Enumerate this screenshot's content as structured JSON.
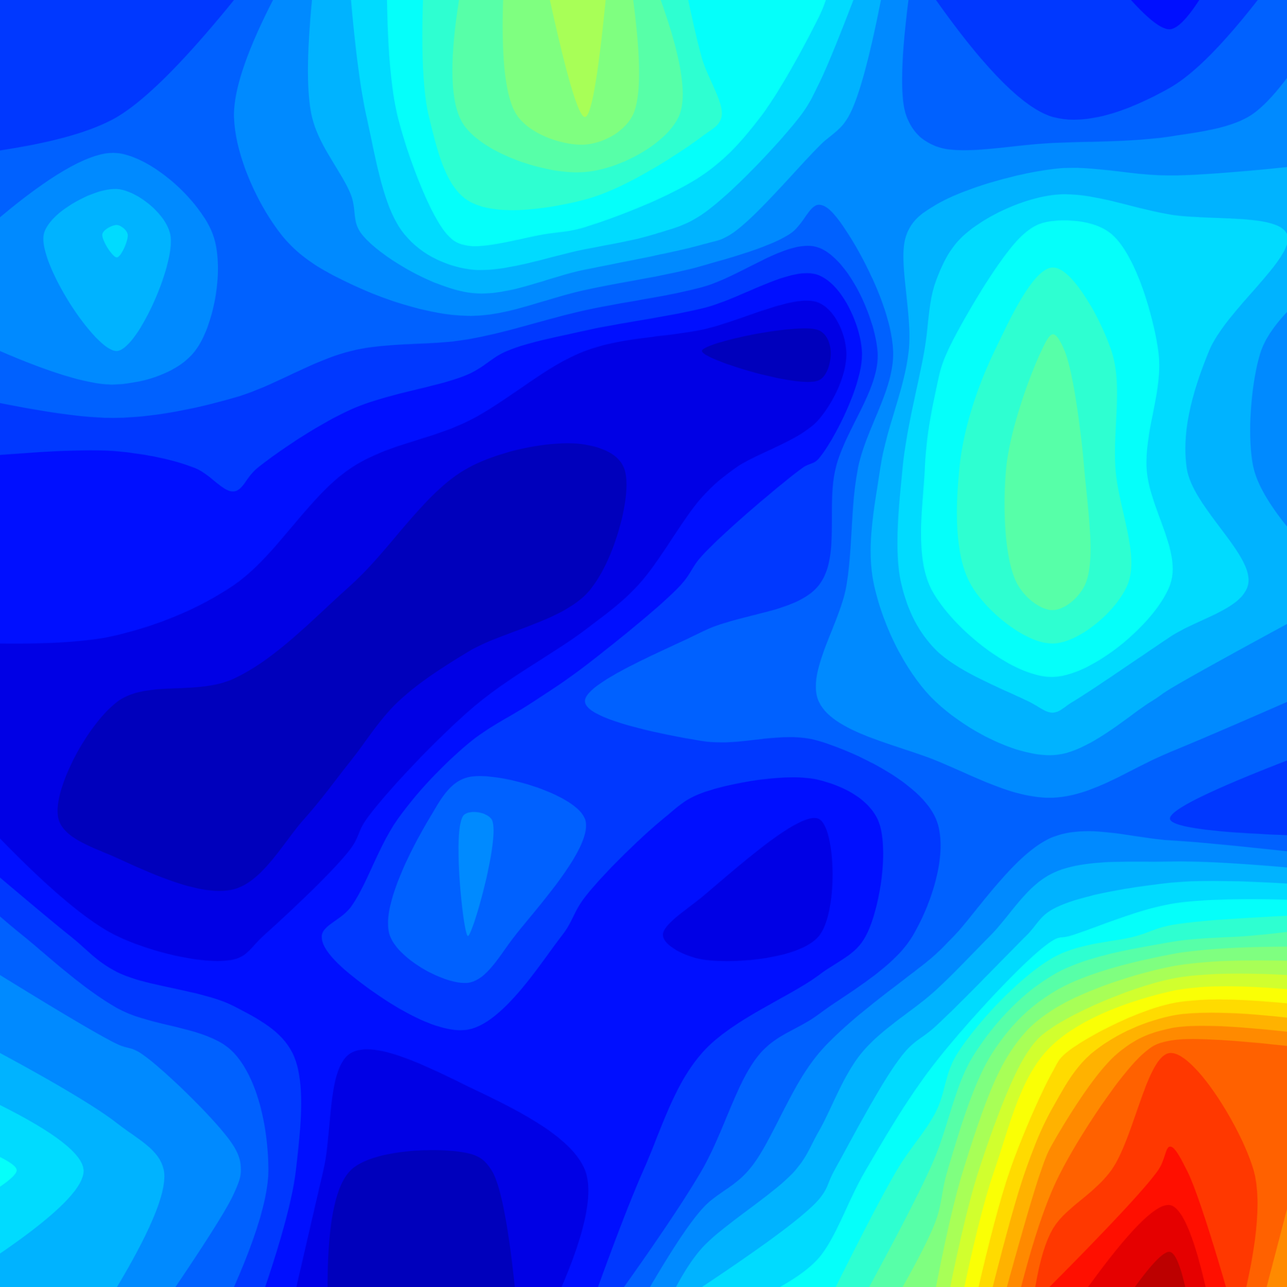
{
  "chart_data": {
    "type": "contour",
    "tick_labels": false,
    "grid": false,
    "zlim": [
      0,
      1
    ],
    "z": [
      [
        0.18,
        0.17,
        0.2,
        0.32,
        0.45,
        0.55,
        0.38,
        0.37,
        0.2,
        0.2,
        0.14,
        0.22
      ],
      [
        0.18,
        0.2,
        0.24,
        0.3,
        0.45,
        0.52,
        0.42,
        0.3,
        0.22,
        0.2,
        0.22,
        0.25
      ],
      [
        0.25,
        0.33,
        0.22,
        0.27,
        0.38,
        0.35,
        0.3,
        0.22,
        0.3,
        0.38,
        0.34,
        0.32
      ],
      [
        0.24,
        0.28,
        0.22,
        0.2,
        0.18,
        0.12,
        0.08,
        0.05,
        0.35,
        0.45,
        0.35,
        0.26
      ],
      [
        0.15,
        0.14,
        0.17,
        0.12,
        0.08,
        0.07,
        0.1,
        0.17,
        0.38,
        0.48,
        0.33,
        0.26
      ],
      [
        0.14,
        0.15,
        0.12,
        0.08,
        0.04,
        0.07,
        0.18,
        0.2,
        0.37,
        0.47,
        0.36,
        0.3
      ],
      [
        0.1,
        0.08,
        0.07,
        0.06,
        0.11,
        0.2,
        0.23,
        0.24,
        0.28,
        0.33,
        0.27,
        0.24
      ],
      [
        0.1,
        0.06,
        0.05,
        0.1,
        0.25,
        0.2,
        0.14,
        0.12,
        0.2,
        0.22,
        0.2,
        0.16
      ],
      [
        0.22,
        0.12,
        0.1,
        0.18,
        0.24,
        0.14,
        0.11,
        0.12,
        0.22,
        0.35,
        0.42,
        0.45
      ],
      [
        0.28,
        0.25,
        0.2,
        0.12,
        0.14,
        0.13,
        0.16,
        0.24,
        0.35,
        0.62,
        0.8,
        0.78
      ],
      [
        0.37,
        0.3,
        0.25,
        0.08,
        0.07,
        0.12,
        0.2,
        0.3,
        0.45,
        0.75,
        0.85,
        0.78
      ],
      [
        0.3,
        0.28,
        0.2,
        0.05,
        0.04,
        0.14,
        0.32,
        0.38,
        0.52,
        0.85,
        0.95,
        0.72
      ]
    ]
  }
}
